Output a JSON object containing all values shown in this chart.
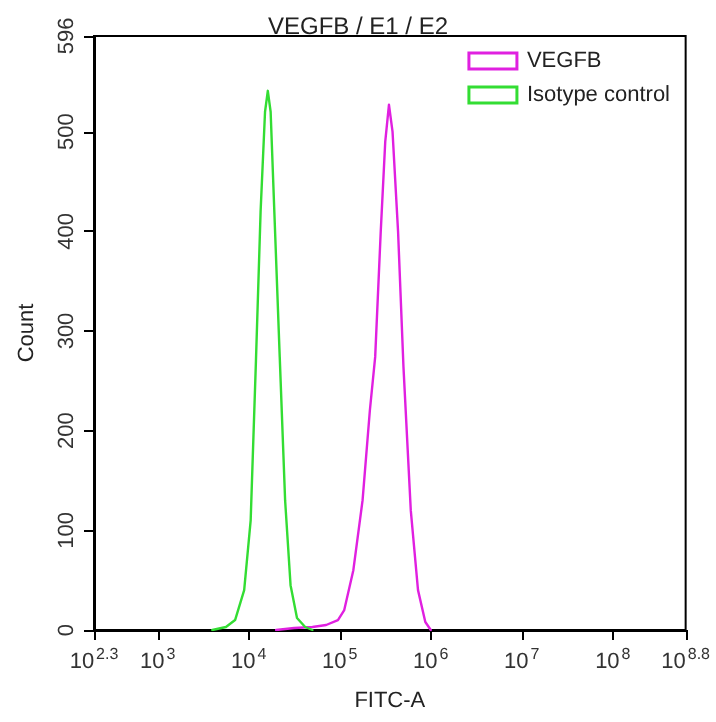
{
  "chart_data": {
    "type": "line",
    "title": "VEGFB / E1 / E2",
    "xlabel": "FITC-A",
    "ylabel": "Count",
    "log": "x",
    "grid": false,
    "legend": "top right",
    "marker": "none",
    "line_style": "solid",
    "xlim": [
      199.5,
      630957344
    ],
    "xticks": [
      {
        "value": 199.5,
        "label": "10$^{2.3}$"
      },
      {
        "value": 1000,
        "label": "10$^{3}$"
      },
      {
        "value": 10000,
        "label": "10$^{4}$"
      },
      {
        "value": 100000,
        "label": "10$^{5}$"
      },
      {
        "value": 1000000,
        "label": "10$^{6}$"
      },
      {
        "value": 10000000,
        "label": "10$^{7}$"
      },
      {
        "value": 100000000,
        "label": "10$^{8}$"
      },
      {
        "value": 630957344,
        "label": "10$^{8.8}$"
      }
    ],
    "ylim": [
      0,
      596
    ],
    "yticks": [
      0,
      100,
      200,
      300,
      400,
      500,
      596
    ],
    "series": [
      {
        "name": "VEGFB",
        "color": "#e020e0",
        "x": [
          20000.0,
          31600.0,
          50100.0,
          70800.0,
          95500.0,
          112000.0,
          141000.0,
          178000.0,
          214000.0,
          245000.0,
          282000.0,
          316000.0,
          347000.0,
          380000.0,
          437000.0,
          501000.0,
          603000.0,
          724000.0,
          871000.0,
          1000000.0
        ],
        "values": [
          0,
          2,
          3,
          5,
          10,
          20,
          60,
          130,
          220,
          274,
          400,
          490,
          527,
          500,
          400,
          264,
          120,
          40,
          8,
          0
        ]
      },
      {
        "name": "Isotype control",
        "color": "#33dd33",
        "x": [
          3980.0,
          5620.0,
          7080.0,
          8910.0,
          10500.0,
          12000.0,
          13500.0,
          15100.0,
          16200.0,
          17400.0,
          19100.0,
          21900.0,
          25100.0,
          28800.0,
          33900.0,
          41700.0,
          50100.0
        ],
        "values": [
          0,
          3,
          10,
          40,
          110,
          270,
          420,
          520,
          541,
          520,
          420,
          274,
          130,
          45,
          12,
          3,
          0
        ]
      }
    ]
  }
}
